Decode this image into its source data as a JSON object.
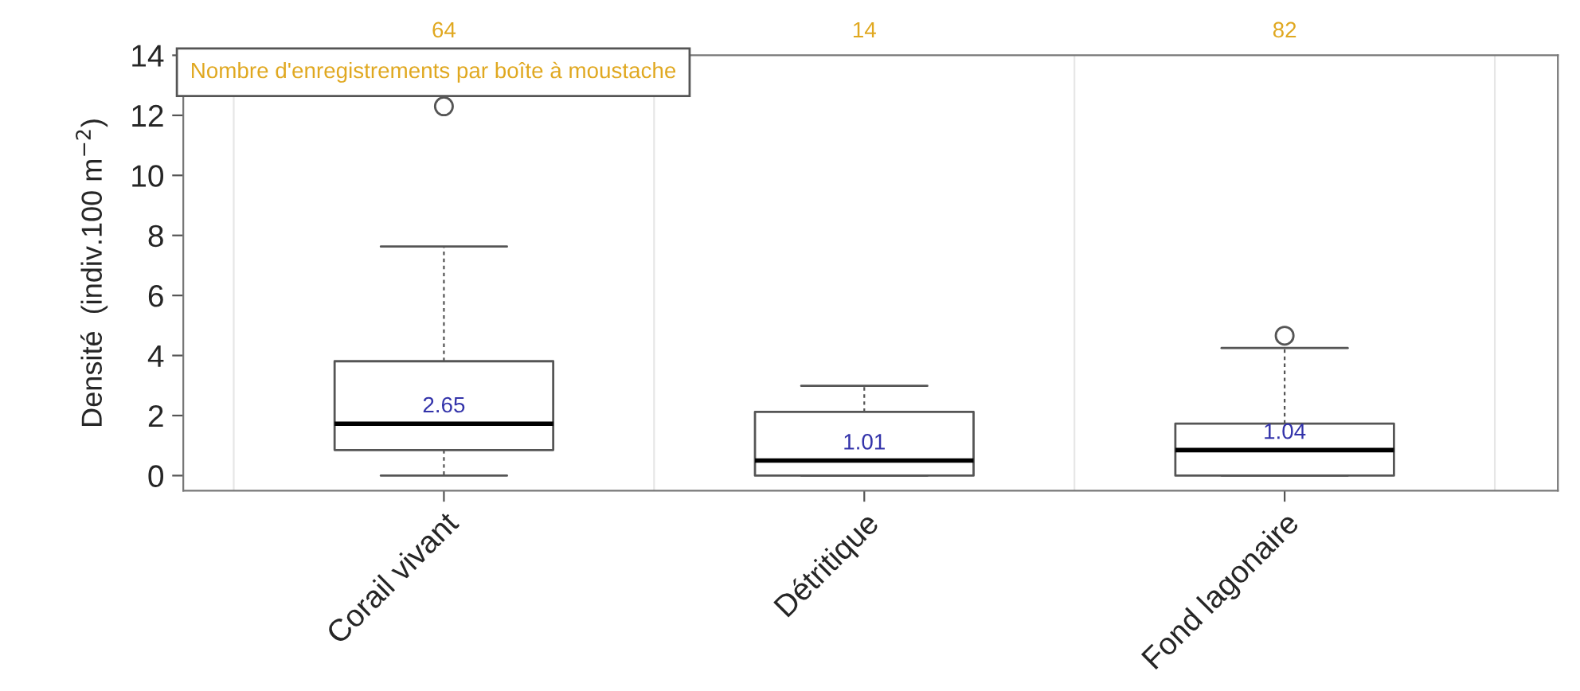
{
  "chart_data": {
    "type": "box",
    "categories": [
      "Corail vivant",
      "Détritique",
      "Fond lagonaire"
    ],
    "boxes": [
      {
        "low": 0,
        "q1": 0.85,
        "median": 1.73,
        "q3": 3.81,
        "high": 7.63,
        "outliers": [
          12.3
        ]
      },
      {
        "low": 0,
        "q1": 0,
        "median": 0.5,
        "q3": 2.12,
        "high": 2.99
      },
      {
        "low": 0,
        "q1": 0,
        "median": 0.85,
        "q3": 1.73,
        "high": 4.25,
        "outliers": [
          4.66
        ]
      }
    ],
    "value_labels": [
      "2.65",
      "1.01",
      "1.04"
    ],
    "ylabel": "Densité  (indiv.100 m$^{−2}$)",
    "ylim": [
      -0.5,
      14
    ],
    "yticks": [
      0,
      2,
      4,
      6,
      8,
      10,
      12,
      14
    ],
    "annotations": [
      "64",
      "14",
      "82",
      "Nombre d'enregistrements par boîte à moustache"
    ],
    "grid": "x"
  }
}
